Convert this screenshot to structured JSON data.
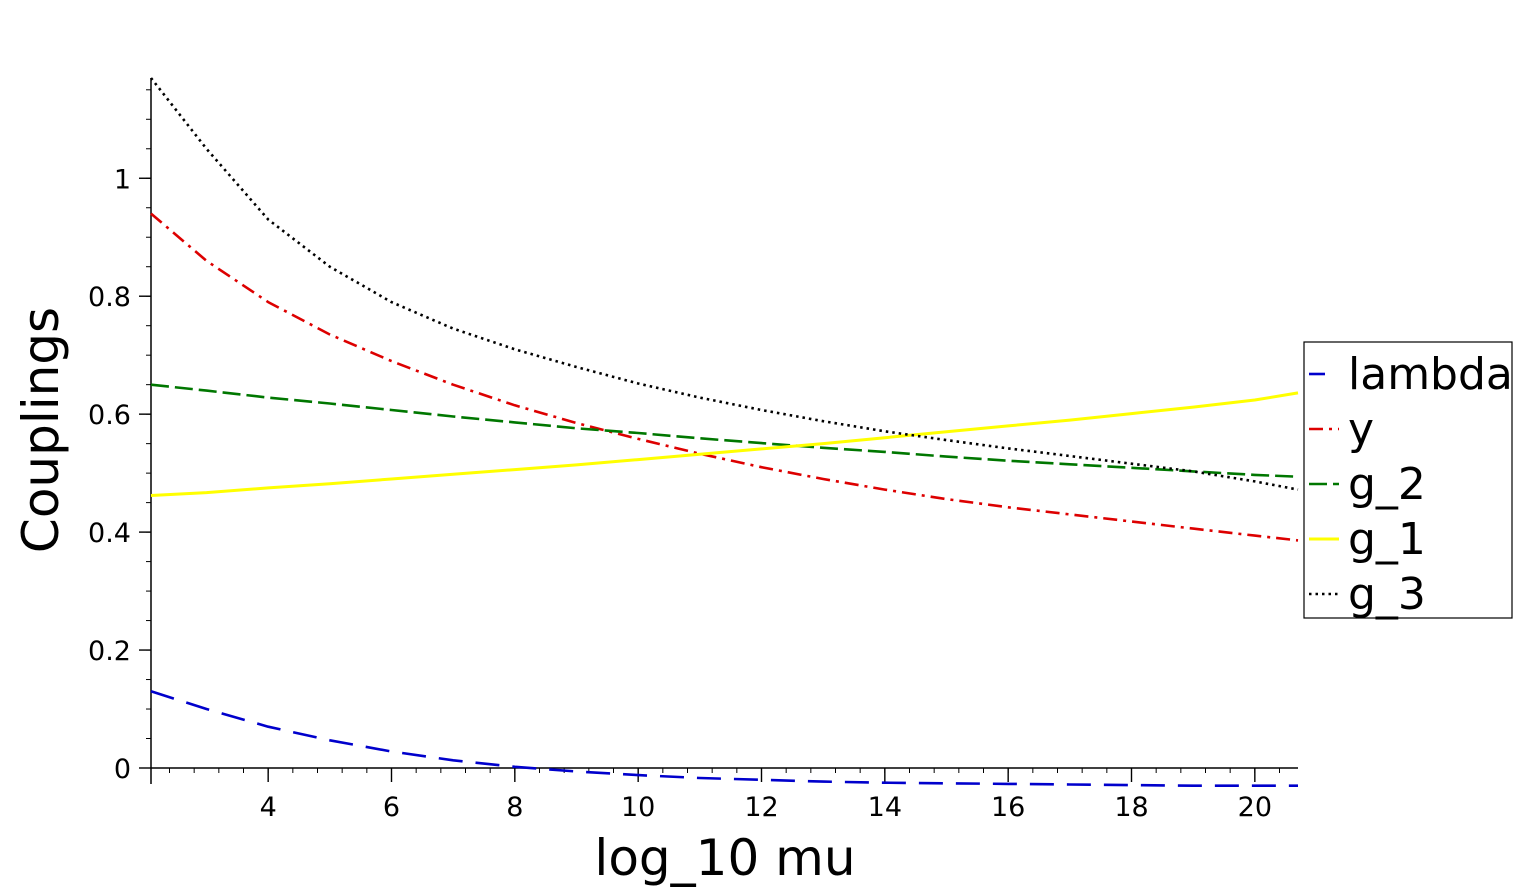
{
  "chart_data": {
    "type": "line",
    "title": "",
    "xlabel": "log_10 mu",
    "ylabel": "Couplings",
    "xlim": [
      2.1,
      20.7
    ],
    "ylim": [
      0,
      1.17
    ],
    "x_ticks": [
      4,
      6,
      8,
      10,
      12,
      14,
      16,
      18,
      20
    ],
    "x_tick_labels": [
      "4",
      "6",
      "8",
      "10",
      "12",
      "14",
      "16",
      "18",
      "20"
    ],
    "y_ticks": [
      0,
      0.2,
      0.4,
      0.6,
      0.8,
      1
    ],
    "y_tick_labels": [
      "0",
      "0.2",
      "0.4",
      "0.6",
      "0.8",
      "1"
    ],
    "grid": false,
    "legend_position": "right",
    "x": [
      2.1,
      3,
      4,
      5,
      6,
      7,
      8,
      9,
      10,
      11,
      12,
      13,
      14,
      15,
      16,
      17,
      18,
      19,
      20,
      20.7
    ],
    "series": [
      {
        "name": "lambda",
        "color": "#0000cc",
        "style": "dashed",
        "values": [
          0.13,
          0.1,
          0.07,
          0.047,
          0.028,
          0.013,
          0.002,
          -0.006,
          -0.012,
          -0.017,
          -0.02,
          -0.023,
          -0.025,
          -0.026,
          -0.027,
          -0.028,
          -0.029,
          -0.03,
          -0.03,
          -0.03
        ]
      },
      {
        "name": "y",
        "color": "#dd0000",
        "style": "dashdot",
        "values": [
          0.94,
          0.86,
          0.79,
          0.735,
          0.69,
          0.65,
          0.615,
          0.585,
          0.558,
          0.533,
          0.51,
          0.49,
          0.472,
          0.456,
          0.442,
          0.43,
          0.418,
          0.406,
          0.394,
          0.386
        ]
      },
      {
        "name": "g_2",
        "color": "#007700",
        "style": "longdash",
        "values": [
          0.65,
          0.64,
          0.628,
          0.618,
          0.607,
          0.596,
          0.586,
          0.576,
          0.568,
          0.559,
          0.551,
          0.543,
          0.536,
          0.528,
          0.521,
          0.515,
          0.509,
          0.503,
          0.497,
          0.494
        ]
      },
      {
        "name": "g_1",
        "color": "#ffff00",
        "style": "solid",
        "values": [
          0.462,
          0.467,
          0.475,
          0.482,
          0.49,
          0.498,
          0.506,
          0.514,
          0.523,
          0.532,
          0.541,
          0.55,
          0.56,
          0.57,
          0.58,
          0.59,
          0.601,
          0.612,
          0.624,
          0.636
        ]
      },
      {
        "name": "g_3",
        "color": "#000000",
        "style": "dotted",
        "values": [
          1.17,
          1.05,
          0.93,
          0.85,
          0.79,
          0.745,
          0.71,
          0.68,
          0.652,
          0.628,
          0.607,
          0.588,
          0.571,
          0.556,
          0.542,
          0.529,
          0.516,
          0.503,
          0.486,
          0.472
        ]
      }
    ]
  }
}
